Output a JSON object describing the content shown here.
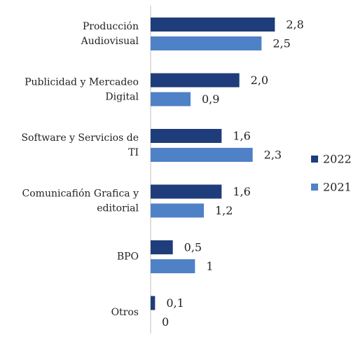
{
  "chart_data": {
    "type": "bar",
    "orientation": "horizontal",
    "categories": [
      "Producción\nAudiovisual",
      "Publicidad y Mercadeo\nDigital",
      "Software y Servicios de\nTI",
      "Comunicafión Grafica y\neditorial",
      "BPO",
      "Otros"
    ],
    "series": [
      {
        "name": "2022",
        "color": "#1f3d7a",
        "values": [
          2.8,
          2.0,
          1.6,
          1.6,
          0.5,
          0.1
        ],
        "value_labels": [
          "2,8",
          "2,0",
          "1,6",
          "1,6",
          "0,5",
          "0,1"
        ]
      },
      {
        "name": "2021",
        "color": "#4f81c7",
        "values": [
          2.5,
          0.9,
          2.3,
          1.2,
          1,
          0
        ],
        "value_labels": [
          "2,5",
          "0,9",
          "2,3",
          "1,2",
          "1",
          "0"
        ]
      }
    ],
    "xlim": [
      0,
      3
    ],
    "legend": "right"
  }
}
